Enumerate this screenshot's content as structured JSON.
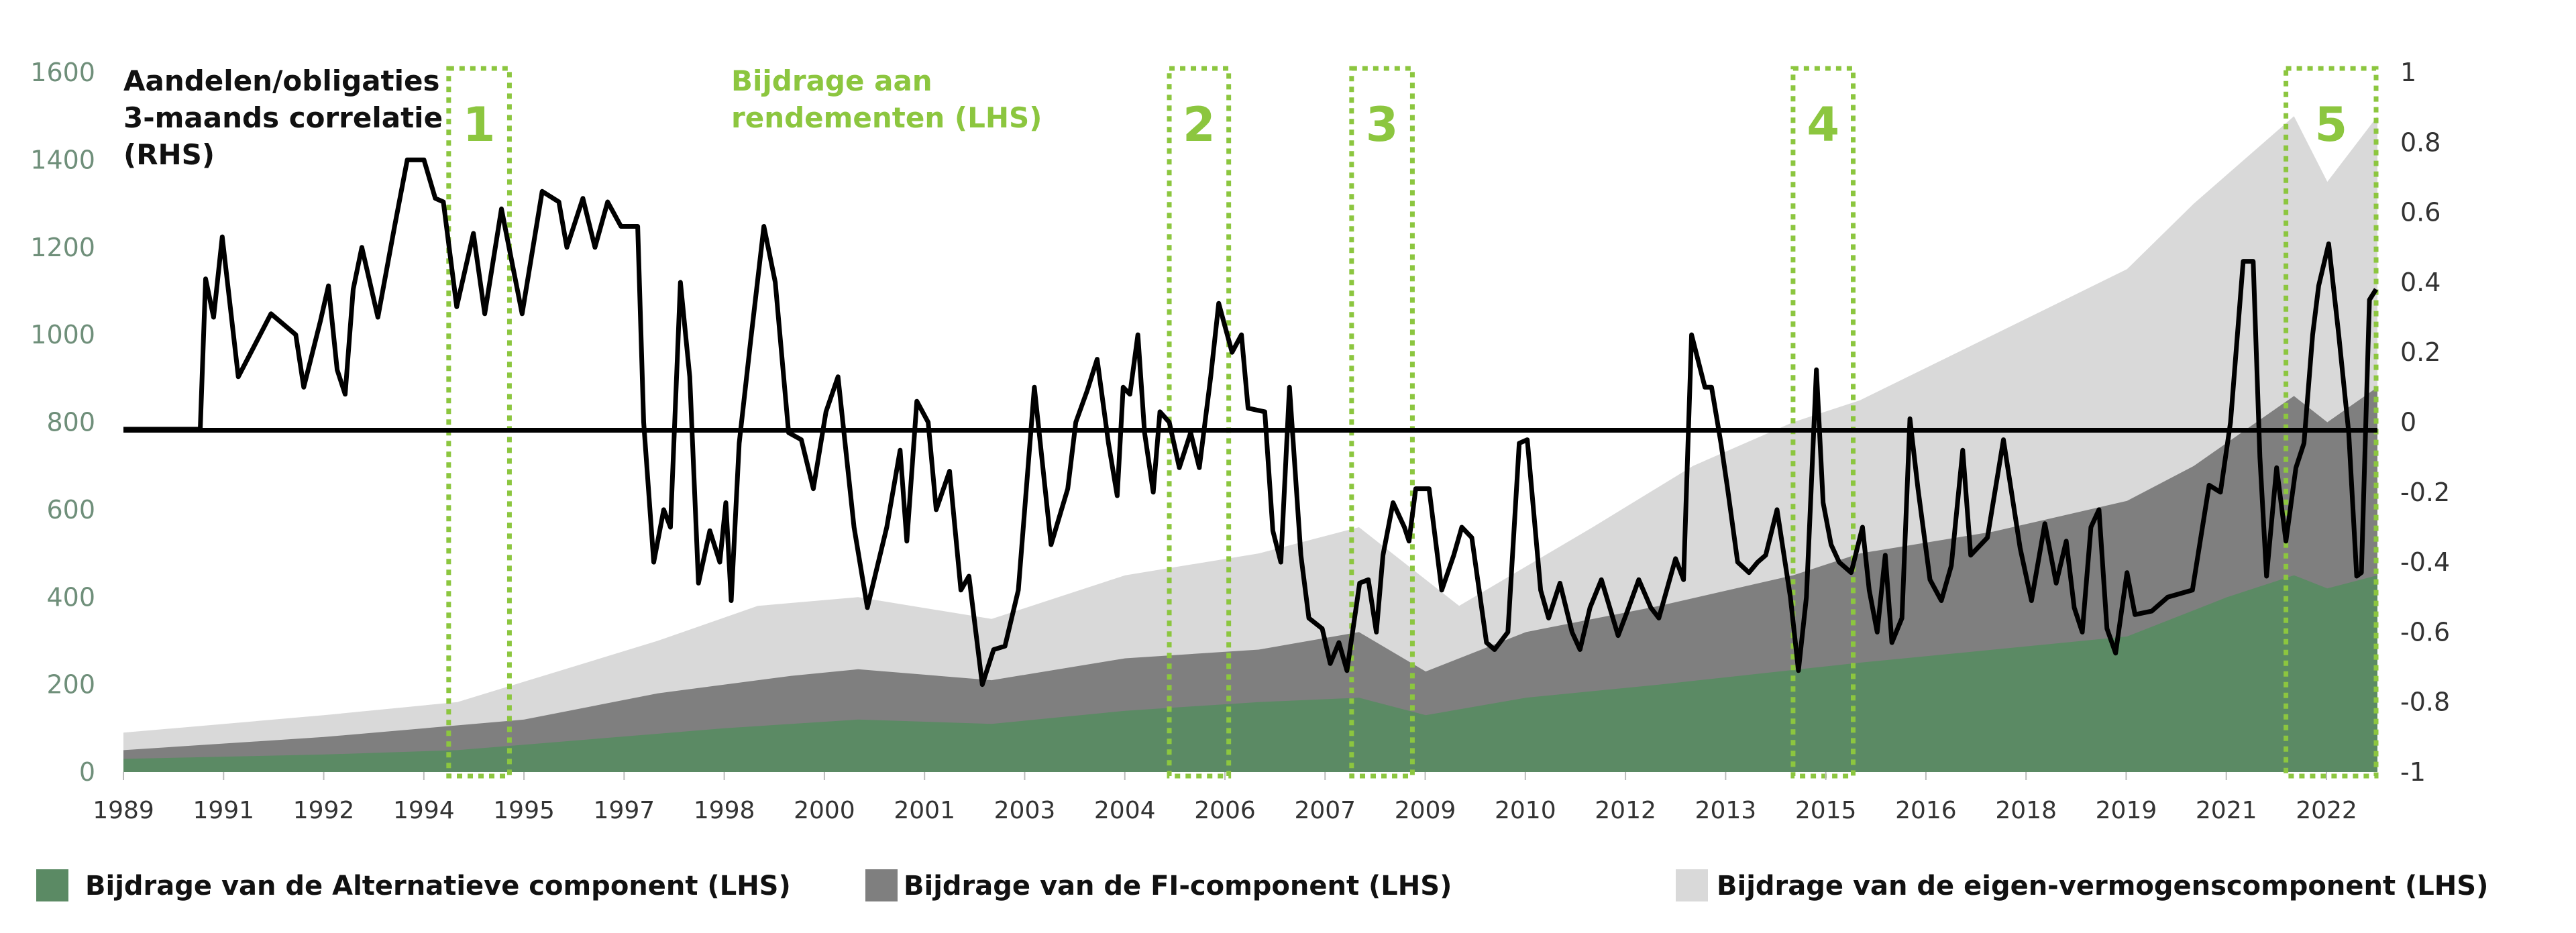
{
  "chart_data": {
    "type": "area",
    "title": "",
    "annotations": {
      "rhs_title": [
        "Aandelen/obligaties",
        "3-maands correlatie",
        "(RHS)"
      ],
      "lhs_title": [
        "Bijdrage aan",
        "rendementen (LHS)"
      ]
    },
    "xlim": [
      1989,
      2022.75
    ],
    "x_tick_labels": [
      "1989",
      "1991",
      "1992",
      "1994",
      "1995",
      "1997",
      "1998",
      "2000",
      "2001",
      "2003",
      "2004",
      "2006",
      "2007",
      "2009",
      "2010",
      "2012",
      "2013",
      "2015",
      "2016",
      "2018",
      "2019",
      "2021",
      "2022"
    ],
    "y_left": {
      "range": [
        0,
        1600
      ],
      "ticks": [
        "0",
        "200",
        "400",
        "600",
        "800",
        "1000",
        "1200",
        "1400",
        "1600"
      ]
    },
    "y_right": {
      "range": [
        -1,
        1
      ],
      "ticks": [
        "-1",
        "-0.8",
        "-0.6",
        "-0.4",
        "-0.2",
        "0",
        "0.2",
        "0.4",
        "0.6",
        "0.8",
        "1"
      ]
    },
    "grid": false,
    "legend_position": "bottom",
    "colors": {
      "alt": "#5b8a64",
      "fi": "#7f7f7f",
      "eq": "#d9d9d9",
      "corr": "#000000",
      "highlight": "#8cc63f"
    },
    "series": [
      {
        "name": "Bijdrage van de Alternatieve component (LHS)",
        "key": "alt",
        "stacked_total": [
          [
            1989,
            30
          ],
          [
            1992,
            40
          ],
          [
            1994,
            50
          ],
          [
            1996,
            75
          ],
          [
            1998,
            100
          ],
          [
            2000,
            120
          ],
          [
            2002,
            110
          ],
          [
            2004,
            140
          ],
          [
            2006,
            160
          ],
          [
            2007.5,
            170
          ],
          [
            2008.5,
            130
          ],
          [
            2010,
            170
          ],
          [
            2012,
            200
          ],
          [
            2015,
            250
          ],
          [
            2017,
            280
          ],
          [
            2019,
            310
          ],
          [
            2020.5,
            400
          ],
          [
            2021.5,
            450
          ],
          [
            2022,
            420
          ],
          [
            2022.75,
            450
          ]
        ]
      },
      {
        "name": "Bijdrage van de FI-component (LHS)",
        "key": "fi",
        "stacked_total": [
          [
            1989,
            50
          ],
          [
            1992,
            80
          ],
          [
            1995,
            120
          ],
          [
            1997,
            180
          ],
          [
            1999,
            220
          ],
          [
            2000,
            235
          ],
          [
            2002,
            210
          ],
          [
            2004,
            260
          ],
          [
            2006,
            280
          ],
          [
            2007.5,
            320
          ],
          [
            2008.5,
            230
          ],
          [
            2010,
            320
          ],
          [
            2012,
            380
          ],
          [
            2014,
            450
          ],
          [
            2015,
            500
          ],
          [
            2017,
            550
          ],
          [
            2019,
            620
          ],
          [
            2020,
            700
          ],
          [
            2021.5,
            860
          ],
          [
            2022,
            800
          ],
          [
            2022.75,
            880
          ]
        ]
      },
      {
        "name": "Bijdrage van de eigen-vermogenscomponent (LHS)",
        "key": "eq",
        "stacked_total": [
          [
            1989,
            90
          ],
          [
            1992,
            130
          ],
          [
            1994,
            160
          ],
          [
            1995.5,
            230
          ],
          [
            1997,
            300
          ],
          [
            1998.5,
            380
          ],
          [
            2000,
            400
          ],
          [
            2002,
            350
          ],
          [
            2004,
            450
          ],
          [
            2006,
            500
          ],
          [
            2007.5,
            560
          ],
          [
            2009,
            380
          ],
          [
            2011,
            560
          ],
          [
            2012.5,
            700
          ],
          [
            2014,
            800
          ],
          [
            2015,
            850
          ],
          [
            2017,
            1000
          ],
          [
            2019,
            1150
          ],
          [
            2020,
            1300
          ],
          [
            2021.5,
            1500
          ],
          [
            2022,
            1350
          ],
          [
            2022.75,
            1500
          ]
        ]
      },
      {
        "name": "Aandelen/obligaties 3-maands correlatie (RHS)",
        "key": "corr",
        "axis": "right",
        "points": [
          [
            1989,
            -0.02
          ],
          [
            1990.15,
            -0.02
          ],
          [
            1990.23,
            0.41
          ],
          [
            1990.35,
            0.3
          ],
          [
            1990.48,
            0.53
          ],
          [
            1990.72,
            0.13
          ],
          [
            1991.21,
            0.31
          ],
          [
            1991.58,
            0.25
          ],
          [
            1991.7,
            0.1
          ],
          [
            1991.95,
            0.29
          ],
          [
            1992.07,
            0.39
          ],
          [
            1992.2,
            0.15
          ],
          [
            1992.32,
            0.08
          ],
          [
            1992.44,
            0.38
          ],
          [
            1992.57,
            0.5
          ],
          [
            1992.81,
            0.3
          ],
          [
            1993.06,
            0.56
          ],
          [
            1993.25,
            0.75
          ],
          [
            1993.5,
            0.75
          ],
          [
            1993.67,
            0.64
          ],
          [
            1993.79,
            0.63
          ],
          [
            1993.99,
            0.33
          ],
          [
            1994.24,
            0.54
          ],
          [
            1994.41,
            0.31
          ],
          [
            1994.66,
            0.61
          ],
          [
            1994.97,
            0.31
          ],
          [
            1995.27,
            0.66
          ],
          [
            1995.52,
            0.63
          ],
          [
            1995.64,
            0.5
          ],
          [
            1995.88,
            0.64
          ],
          [
            1996.06,
            0.5
          ],
          [
            1996.25,
            0.63
          ],
          [
            1996.45,
            0.56
          ],
          [
            1996.7,
            0.56
          ],
          [
            1996.79,
            0
          ],
          [
            1996.94,
            -0.4
          ],
          [
            1997.09,
            -0.25
          ],
          [
            1997.19,
            -0.3
          ],
          [
            1997.34,
            0.4
          ],
          [
            1997.48,
            0.13
          ],
          [
            1997.61,
            -0.46
          ],
          [
            1997.78,
            -0.31
          ],
          [
            1997.93,
            -0.4
          ],
          [
            1998.02,
            -0.23
          ],
          [
            1998.1,
            -0.51
          ],
          [
            1998.22,
            -0.06
          ],
          [
            1998.39,
            0.23
          ],
          [
            1998.59,
            0.56
          ],
          [
            1998.76,
            0.4
          ],
          [
            1998.96,
            -0.03
          ],
          [
            1999.15,
            -0.05
          ],
          [
            1999.33,
            -0.19
          ],
          [
            1999.52,
            0.03
          ],
          [
            1999.7,
            0.13
          ],
          [
            1999.94,
            -0.3
          ],
          [
            2000.14,
            -0.53
          ],
          [
            2000.43,
            -0.3
          ],
          [
            2000.63,
            -0.08
          ],
          [
            2000.73,
            -0.34
          ],
          [
            2000.88,
            0.06
          ],
          [
            2001.05,
            0
          ],
          [
            2001.17,
            -0.25
          ],
          [
            2001.37,
            -0.14
          ],
          [
            2001.54,
            -0.48
          ],
          [
            2001.66,
            -0.44
          ],
          [
            2001.86,
            -0.75
          ],
          [
            2002.03,
            -0.65
          ],
          [
            2002.2,
            -0.64
          ],
          [
            2002.4,
            -0.48
          ],
          [
            2002.64,
            0.1
          ],
          [
            2002.89,
            -0.35
          ],
          [
            2003.14,
            -0.19
          ],
          [
            2003.26,
            0
          ],
          [
            2003.43,
            0.09
          ],
          [
            2003.58,
            0.18
          ],
          [
            2003.75,
            -0.06
          ],
          [
            2003.88,
            -0.21
          ],
          [
            2003.97,
            0.1
          ],
          [
            2004.07,
            0.08
          ],
          [
            2004.19,
            0.25
          ],
          [
            2004.29,
            -0.03
          ],
          [
            2004.42,
            -0.2
          ],
          [
            2004.52,
            0.03
          ],
          [
            2004.66,
            0
          ],
          [
            2004.81,
            -0.13
          ],
          [
            2004.98,
            -0.03
          ],
          [
            2005.11,
            -0.13
          ],
          [
            2005.28,
            0.13
          ],
          [
            2005.4,
            0.34
          ],
          [
            2005.6,
            0.2
          ],
          [
            2005.74,
            0.25
          ],
          [
            2005.84,
            0.04
          ],
          [
            2006.09,
            0.03
          ],
          [
            2006.21,
            -0.31
          ],
          [
            2006.33,
            -0.4
          ],
          [
            2006.46,
            0.1
          ],
          [
            2006.63,
            -0.38
          ],
          [
            2006.75,
            -0.56
          ],
          [
            2006.95,
            -0.59
          ],
          [
            2007.07,
            -0.69
          ],
          [
            2007.2,
            -0.63
          ],
          [
            2007.32,
            -0.71
          ],
          [
            2007.51,
            -0.46
          ],
          [
            2007.64,
            -0.45
          ],
          [
            2007.76,
            -0.6
          ],
          [
            2007.86,
            -0.38
          ],
          [
            2008.01,
            -0.23
          ],
          [
            2008.18,
            -0.3
          ],
          [
            2008.25,
            -0.34
          ],
          [
            2008.35,
            -0.19
          ],
          [
            2008.55,
            -0.19
          ],
          [
            2008.74,
            -0.48
          ],
          [
            2008.92,
            -0.38
          ],
          [
            2009.04,
            -0.3
          ],
          [
            2009.19,
            -0.33
          ],
          [
            2009.41,
            -0.63
          ],
          [
            2009.53,
            -0.65
          ],
          [
            2009.73,
            -0.6
          ],
          [
            2009.9,
            -0.06
          ],
          [
            2010.02,
            -0.05
          ],
          [
            2010.22,
            -0.48
          ],
          [
            2010.34,
            -0.56
          ],
          [
            2010.51,
            -0.46
          ],
          [
            2010.69,
            -0.6
          ],
          [
            2010.81,
            -0.65
          ],
          [
            2010.96,
            -0.53
          ],
          [
            2011.13,
            -0.45
          ],
          [
            2011.38,
            -0.61
          ],
          [
            2011.5,
            -0.55
          ],
          [
            2011.69,
            -0.45
          ],
          [
            2011.87,
            -0.53
          ],
          [
            2011.99,
            -0.56
          ],
          [
            2012.24,
            -0.39
          ],
          [
            2012.36,
            -0.45
          ],
          [
            2012.48,
            0.25
          ],
          [
            2012.68,
            0.1
          ],
          [
            2012.78,
            0.1
          ],
          [
            2012.92,
            -0.06
          ],
          [
            2013.02,
            -0.19
          ],
          [
            2013.17,
            -0.4
          ],
          [
            2013.34,
            -0.43
          ],
          [
            2013.47,
            -0.4
          ],
          [
            2013.59,
            -0.38
          ],
          [
            2013.76,
            -0.25
          ],
          [
            2013.96,
            -0.5
          ],
          [
            2014.08,
            -0.71
          ],
          [
            2014.2,
            -0.5
          ],
          [
            2014.35,
            0.15
          ],
          [
            2014.45,
            -0.23
          ],
          [
            2014.57,
            -0.35
          ],
          [
            2014.69,
            -0.4
          ],
          [
            2014.87,
            -0.43
          ],
          [
            2015.04,
            -0.3
          ],
          [
            2015.14,
            -0.48
          ],
          [
            2015.26,
            -0.6
          ],
          [
            2015.38,
            -0.38
          ],
          [
            2015.48,
            -0.63
          ],
          [
            2015.63,
            -0.56
          ],
          [
            2015.75,
            0.01
          ],
          [
            2015.87,
            -0.19
          ],
          [
            2016.05,
            -0.45
          ],
          [
            2016.22,
            -0.51
          ],
          [
            2016.37,
            -0.41
          ],
          [
            2016.54,
            -0.08
          ],
          [
            2016.66,
            -0.38
          ],
          [
            2016.91,
            -0.33
          ],
          [
            2017.15,
            -0.05
          ],
          [
            2017.4,
            -0.36
          ],
          [
            2017.57,
            -0.51
          ],
          [
            2017.77,
            -0.29
          ],
          [
            2017.94,
            -0.46
          ],
          [
            2018.09,
            -0.34
          ],
          [
            2018.21,
            -0.53
          ],
          [
            2018.33,
            -0.6
          ],
          [
            2018.46,
            -0.3
          ],
          [
            2018.58,
            -0.25
          ],
          [
            2018.7,
            -0.59
          ],
          [
            2018.83,
            -0.66
          ],
          [
            2019,
            -0.43
          ],
          [
            2019.12,
            -0.55
          ],
          [
            2019.37,
            -0.54
          ],
          [
            2019.61,
            -0.5
          ],
          [
            2019.98,
            -0.48
          ],
          [
            2020.23,
            -0.18
          ],
          [
            2020.4,
            -0.2
          ],
          [
            2020.55,
            0
          ],
          [
            2020.74,
            0.46
          ],
          [
            2020.89,
            0.46
          ],
          [
            2020.99,
            -0.1
          ],
          [
            2021.09,
            -0.44
          ],
          [
            2021.24,
            -0.13
          ],
          [
            2021.38,
            -0.34
          ],
          [
            2021.53,
            -0.13
          ],
          [
            2021.65,
            -0.06
          ],
          [
            2021.78,
            0.25
          ],
          [
            2021.87,
            0.39
          ],
          [
            2022.02,
            0.51
          ],
          [
            2022.17,
            0.25
          ],
          [
            2022.32,
            -0.03
          ],
          [
            2022.44,
            -0.44
          ],
          [
            2022.51,
            -0.43
          ],
          [
            2022.63,
            0.35
          ],
          [
            2022.73,
            0.38
          ]
        ]
      }
    ],
    "highlights": [
      {
        "label": "1",
        "x_range": [
          1993.87,
          1994.78
        ]
      },
      {
        "label": "2",
        "x_range": [
          2004.66,
          2005.55
        ]
      },
      {
        "label": "3",
        "x_range": [
          2007.39,
          2008.3
        ]
      },
      {
        "label": "4",
        "x_range": [
          2014.0,
          2014.9
        ]
      },
      {
        "label": "5",
        "x_range": [
          2021.38,
          2022.73
        ]
      }
    ]
  }
}
